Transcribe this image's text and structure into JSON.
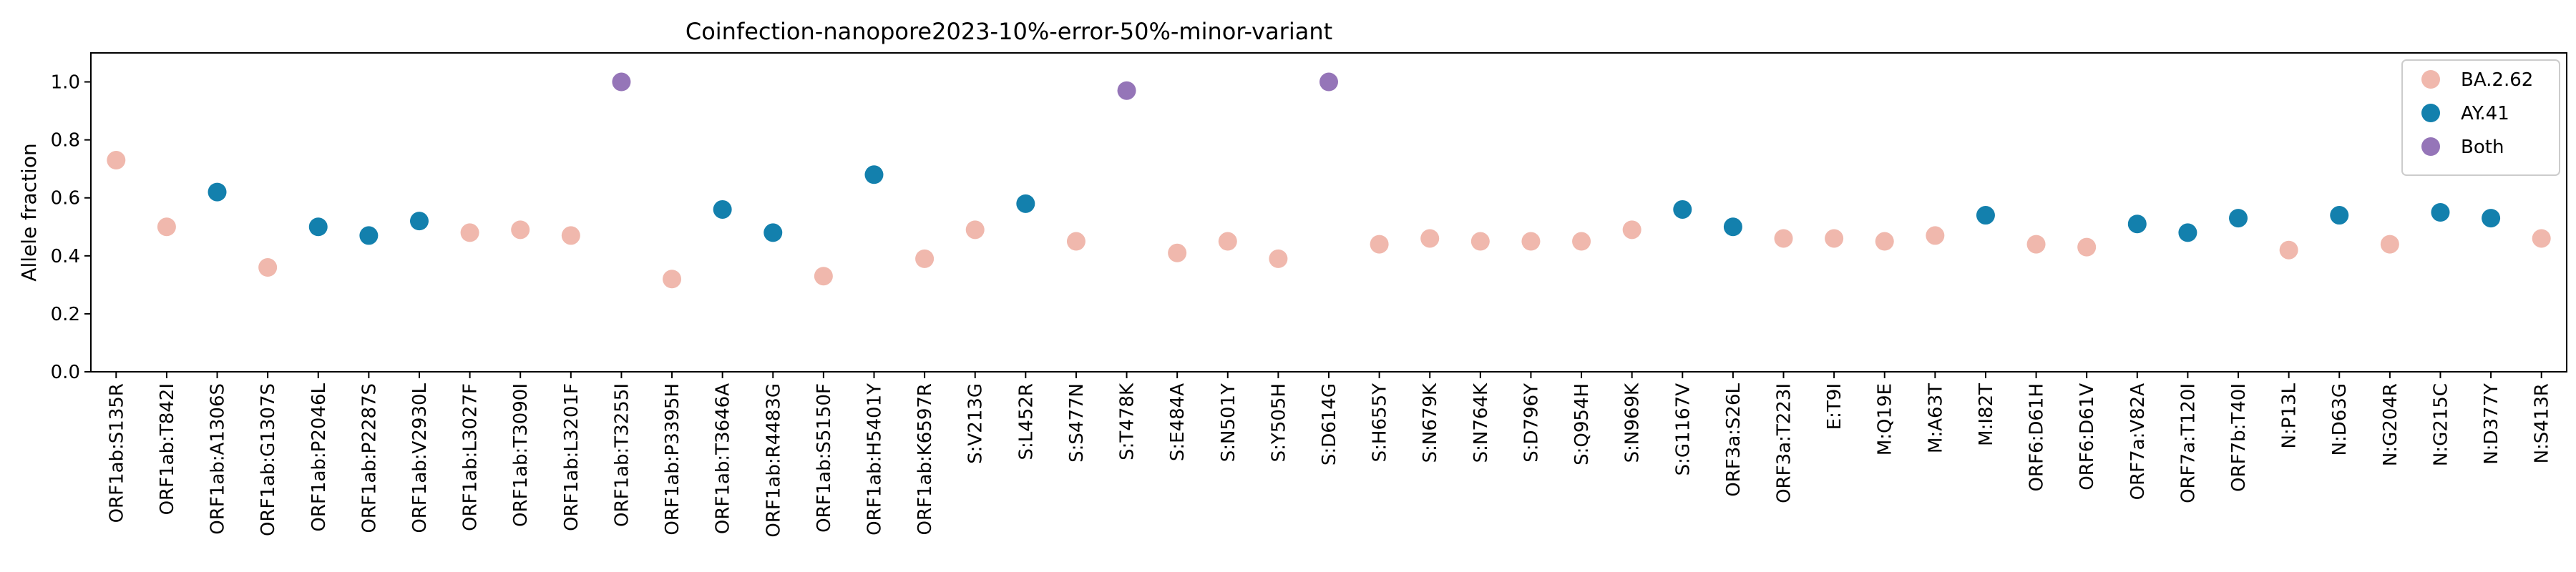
{
  "chart_data": {
    "type": "scatter",
    "title": "Coinfection-nanopore2023-10%-error-50%-minor-variant",
    "xlabel": "",
    "ylabel": "Allele fraction",
    "ylim": [
      0.0,
      1.1
    ],
    "yticks": [
      "0.0",
      "0.2",
      "0.4",
      "0.6",
      "0.8",
      "1.0"
    ],
    "grid": false,
    "legend_position": "top-right",
    "categories": [
      "ORF1ab:S135R",
      "ORF1ab:T842I",
      "ORF1ab:A1306S",
      "ORF1ab:G1307S",
      "ORF1ab:P2046L",
      "ORF1ab:P2287S",
      "ORF1ab:V2930L",
      "ORF1ab:L3027F",
      "ORF1ab:T3090I",
      "ORF1ab:L3201F",
      "ORF1ab:T3255I",
      "ORF1ab:P3395H",
      "ORF1ab:T3646A",
      "ORF1ab:R4483G",
      "ORF1ab:S5150F",
      "ORF1ab:H5401Y",
      "ORF1ab:K6597R",
      "S:V213G",
      "S:L452R",
      "S:S477N",
      "S:T478K",
      "S:E484A",
      "S:N501Y",
      "S:Y505H",
      "S:D614G",
      "S:H655Y",
      "S:N679K",
      "S:N764K",
      "S:D796Y",
      "S:Q954H",
      "S:N969K",
      "S:G1167V",
      "ORF3a:S26L",
      "ORF3a:T223I",
      "E:T9I",
      "M:Q19E",
      "M:A63T",
      "M:I82T",
      "ORF6:D61H",
      "ORF6:D61V",
      "ORF7a:V82A",
      "ORF7a:T120I",
      "ORF7b:T40I",
      "N:P13L",
      "N:D63G",
      "N:G204R",
      "N:G215C",
      "N:D377Y",
      "N:S413R"
    ],
    "series": [
      {
        "name": "BA.2.62",
        "color": "#f0b8ad",
        "points": [
          {
            "x": "ORF1ab:S135R",
            "y": 0.73
          },
          {
            "x": "ORF1ab:T842I",
            "y": 0.5
          },
          {
            "x": "ORF1ab:G1307S",
            "y": 0.36
          },
          {
            "x": "ORF1ab:L3027F",
            "y": 0.48
          },
          {
            "x": "ORF1ab:T3090I",
            "y": 0.49
          },
          {
            "x": "ORF1ab:L3201F",
            "y": 0.47
          },
          {
            "x": "ORF1ab:P3395H",
            "y": 0.32
          },
          {
            "x": "ORF1ab:S5150F",
            "y": 0.33
          },
          {
            "x": "ORF1ab:K6597R",
            "y": 0.39
          },
          {
            "x": "S:V213G",
            "y": 0.49
          },
          {
            "x": "S:S477N",
            "y": 0.45
          },
          {
            "x": "S:E484A",
            "y": 0.41
          },
          {
            "x": "S:N501Y",
            "y": 0.45
          },
          {
            "x": "S:Y505H",
            "y": 0.39
          },
          {
            "x": "S:H655Y",
            "y": 0.44
          },
          {
            "x": "S:N679K",
            "y": 0.46
          },
          {
            "x": "S:N764K",
            "y": 0.45
          },
          {
            "x": "S:D796Y",
            "y": 0.45
          },
          {
            "x": "S:Q954H",
            "y": 0.45
          },
          {
            "x": "S:N969K",
            "y": 0.49
          },
          {
            "x": "ORF3a:T223I",
            "y": 0.46
          },
          {
            "x": "E:T9I",
            "y": 0.46
          },
          {
            "x": "M:Q19E",
            "y": 0.45
          },
          {
            "x": "M:A63T",
            "y": 0.47
          },
          {
            "x": "ORF6:D61H",
            "y": 0.44
          },
          {
            "x": "ORF6:D61V",
            "y": 0.43
          },
          {
            "x": "N:P13L",
            "y": 0.42
          },
          {
            "x": "N:G204R",
            "y": 0.44
          },
          {
            "x": "N:S413R",
            "y": 0.46
          }
        ]
      },
      {
        "name": "AY.41",
        "color": "#1380ad",
        "points": [
          {
            "x": "ORF1ab:A1306S",
            "y": 0.62
          },
          {
            "x": "ORF1ab:P2046L",
            "y": 0.5
          },
          {
            "x": "ORF1ab:P2287S",
            "y": 0.47
          },
          {
            "x": "ORF1ab:V2930L",
            "y": 0.52
          },
          {
            "x": "ORF1ab:T3646A",
            "y": 0.56
          },
          {
            "x": "ORF1ab:R4483G",
            "y": 0.48
          },
          {
            "x": "ORF1ab:H5401Y",
            "y": 0.68
          },
          {
            "x": "S:L452R",
            "y": 0.58
          },
          {
            "x": "S:G1167V",
            "y": 0.56
          },
          {
            "x": "ORF3a:S26L",
            "y": 0.5
          },
          {
            "x": "M:I82T",
            "y": 0.54
          },
          {
            "x": "ORF7a:V82A",
            "y": 0.51
          },
          {
            "x": "ORF7a:T120I",
            "y": 0.48
          },
          {
            "x": "ORF7b:T40I",
            "y": 0.53
          },
          {
            "x": "N:D63G",
            "y": 0.54
          },
          {
            "x": "N:G215C",
            "y": 0.55
          },
          {
            "x": "N:D377Y",
            "y": 0.53
          }
        ]
      },
      {
        "name": "Both",
        "color": "#9575b8",
        "points": [
          {
            "x": "ORF1ab:T3255I",
            "y": 1.0
          },
          {
            "x": "S:T478K",
            "y": 0.97
          },
          {
            "x": "S:D614G",
            "y": 1.0
          }
        ]
      }
    ]
  }
}
